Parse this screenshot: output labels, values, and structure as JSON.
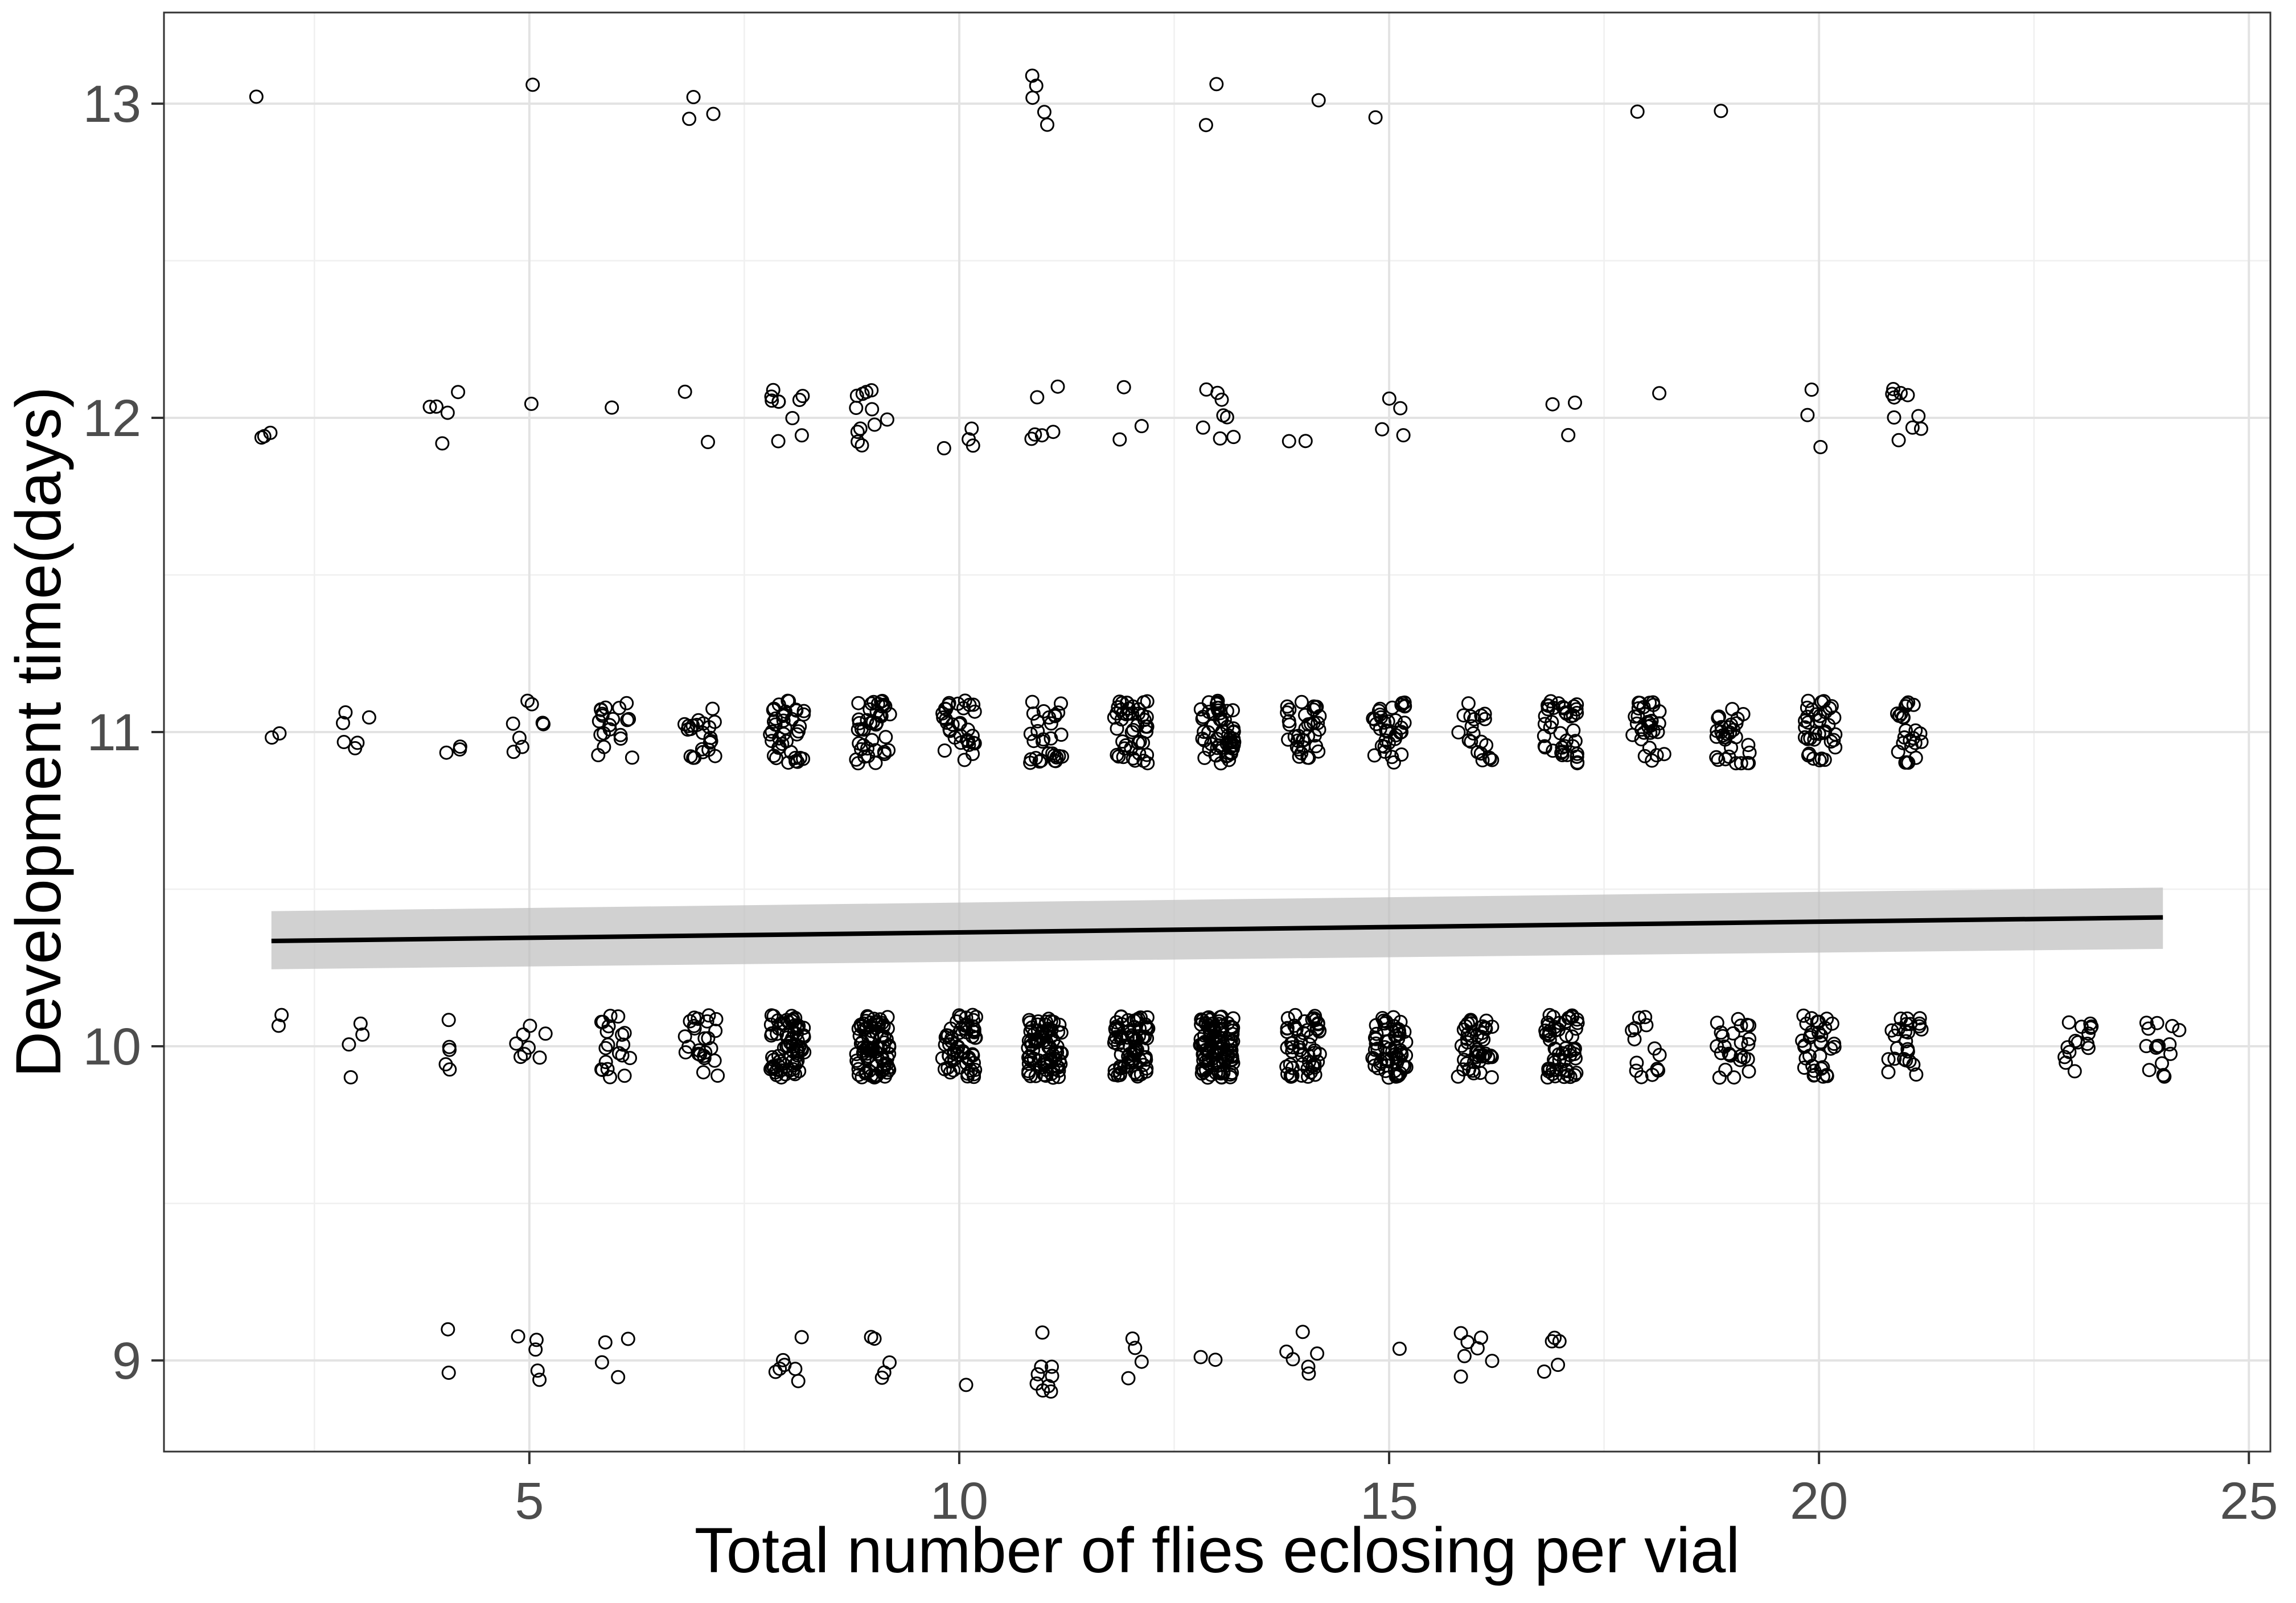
{
  "chart_data": {
    "type": "scatter",
    "title": "",
    "xlabel": "Total number of flies eclosing per vial",
    "ylabel": "Development time(days)",
    "xlim": [
      0.75,
      25.25
    ],
    "ylim": [
      8.71,
      13.29
    ],
    "x_ticks": [
      5,
      10,
      15,
      20,
      25
    ],
    "x_tick_labels": [
      "5",
      "10",
      "15",
      "20",
      "25"
    ],
    "y_ticks": [
      9,
      10,
      11,
      12,
      13
    ],
    "y_tick_labels": [
      "9",
      "10",
      "11",
      "12",
      "13"
    ],
    "grid": true,
    "legend": "none",
    "jitter": {
      "x": 0.2,
      "y": 0.1
    },
    "point_style": "open circle",
    "colors": {
      "points": "#000000",
      "trend_line": "#000000",
      "confidence_band": "#bdbdbd",
      "grid": "#e3e3e3"
    },
    "trend": {
      "method": "linear fit",
      "x": [
        2,
        24
      ],
      "y": [
        10.335,
        10.41
      ],
      "ci_lower": [
        10.245,
        10.31
      ],
      "ci_upper": [
        10.43,
        10.505
      ]
    },
    "points_summary": [
      {
        "y": 9,
        "counts": [
          [
            4,
            2
          ],
          [
            5,
            5
          ],
          [
            6,
            4
          ],
          [
            8,
            7
          ],
          [
            9,
            5
          ],
          [
            10,
            1
          ],
          [
            11,
            9
          ],
          [
            12,
            4
          ],
          [
            13,
            2
          ],
          [
            14,
            6
          ],
          [
            15,
            1
          ],
          [
            16,
            7
          ],
          [
            17,
            5
          ]
        ]
      },
      {
        "y": 10,
        "counts": [
          [
            2,
            2
          ],
          [
            3,
            4
          ],
          [
            4,
            5
          ],
          [
            5,
            8
          ],
          [
            6,
            20
          ],
          [
            7,
            24
          ],
          [
            8,
            70
          ],
          [
            9,
            85
          ],
          [
            10,
            60
          ],
          [
            11,
            80
          ],
          [
            12,
            75
          ],
          [
            13,
            110
          ],
          [
            14,
            55
          ],
          [
            15,
            60
          ],
          [
            16,
            45
          ],
          [
            17,
            55
          ],
          [
            18,
            14
          ],
          [
            19,
            25
          ],
          [
            20,
            35
          ],
          [
            21,
            25
          ],
          [
            23,
            15
          ],
          [
            24,
            15
          ]
        ]
      },
      {
        "y": 11,
        "counts": [
          [
            2,
            2
          ],
          [
            3,
            6
          ],
          [
            4,
            3
          ],
          [
            5,
            8
          ],
          [
            6,
            20
          ],
          [
            7,
            22
          ],
          [
            8,
            40
          ],
          [
            9,
            40
          ],
          [
            10,
            32
          ],
          [
            11,
            30
          ],
          [
            12,
            45
          ],
          [
            13,
            55
          ],
          [
            14,
            35
          ],
          [
            15,
            35
          ],
          [
            16,
            20
          ],
          [
            17,
            40
          ],
          [
            18,
            30
          ],
          [
            19,
            30
          ],
          [
            20,
            35
          ],
          [
            21,
            25
          ]
        ]
      },
      {
        "y": 12,
        "counts": [
          [
            2,
            3
          ],
          [
            4,
            5
          ],
          [
            5,
            1
          ],
          [
            6,
            1
          ],
          [
            7,
            2
          ],
          [
            8,
            10
          ],
          [
            9,
            12
          ],
          [
            10,
            4
          ],
          [
            11,
            6
          ],
          [
            12,
            3
          ],
          [
            13,
            8
          ],
          [
            14,
            2
          ],
          [
            15,
            4
          ],
          [
            17,
            3
          ],
          [
            18,
            1
          ],
          [
            20,
            3
          ],
          [
            21,
            10
          ]
        ]
      },
      {
        "y": 13,
        "counts": [
          [
            2,
            1
          ],
          [
            5,
            1
          ],
          [
            7,
            3
          ],
          [
            11,
            5
          ],
          [
            13,
            2
          ],
          [
            14,
            1
          ],
          [
            15,
            1
          ],
          [
            18,
            1
          ],
          [
            19,
            1
          ]
        ]
      }
    ]
  }
}
